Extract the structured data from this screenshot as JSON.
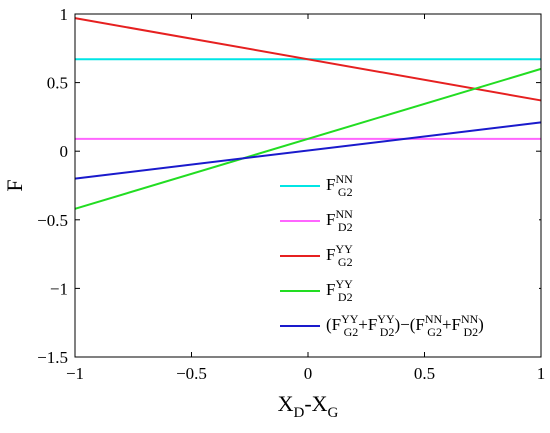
{
  "chart_data": {
    "type": "line",
    "xlabel": "X_D-X_G",
    "ylabel": "F",
    "xlim": [
      -1,
      1
    ],
    "ylim": [
      -1.5,
      1
    ],
    "xticks": [
      "−1",
      "−0.5",
      "0",
      "0.5",
      "1"
    ],
    "yticks": [
      "1",
      "0.5",
      "0",
      "−0.5",
      "−1",
      "−1.5"
    ],
    "grid": false,
    "legend_position": "bottom-right",
    "series": [
      {
        "name": "F_G2^NN",
        "color": "#00e5e5",
        "x": [
          -1,
          1
        ],
        "y": [
          0.67,
          0.67
        ]
      },
      {
        "name": "F_D2^NN",
        "color": "#ff66ff",
        "x": [
          -1,
          1
        ],
        "y": [
          0.09,
          0.09
        ]
      },
      {
        "name": "F_G2^YY",
        "color": "#e62020",
        "x": [
          -1,
          1
        ],
        "y": [
          0.97,
          0.37
        ]
      },
      {
        "name": "F_D2^YY",
        "color": "#22dd22",
        "x": [
          -1,
          1
        ],
        "y": [
          -0.42,
          0.6
        ]
      },
      {
        "name": "(F_G2^YY+F_D2^YY)−(F_G2^NN+F_D2^NN)",
        "color": "#1a1acc",
        "x": [
          -1,
          1
        ],
        "y": [
          -0.2,
          0.21
        ]
      }
    ]
  }
}
